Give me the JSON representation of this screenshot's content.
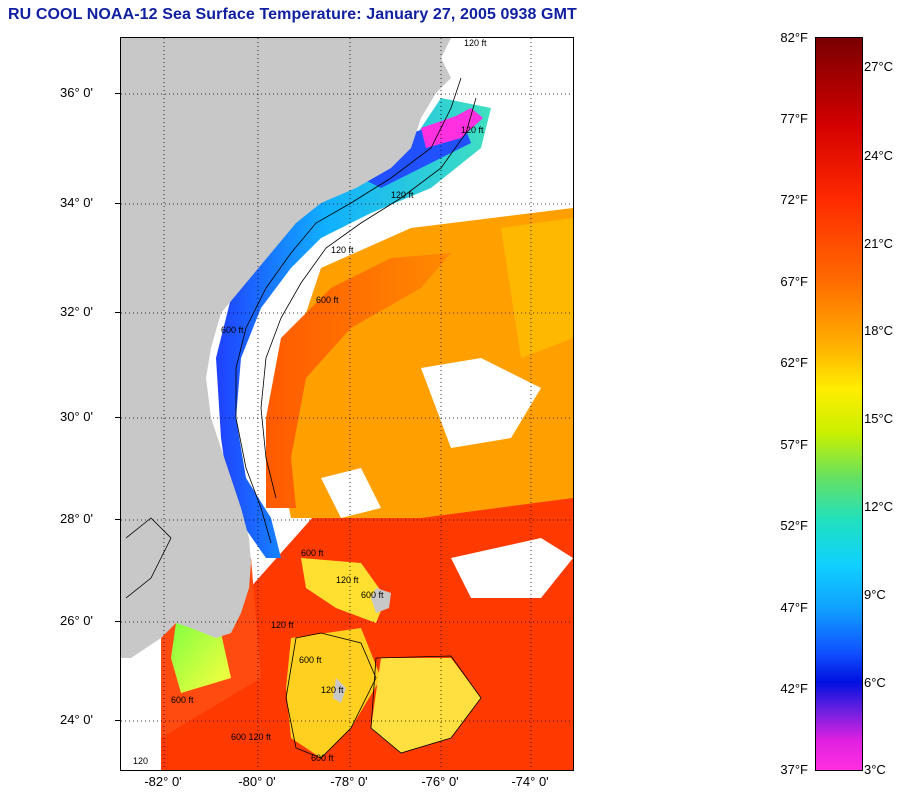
{
  "title": "RU COOL  NOAA-12  Sea Surface Temperature:  January 27, 2005 0938 GMT",
  "map": {
    "latitude_labels": [
      "36° 0'",
      "34° 0'",
      "32° 0'",
      "30° 0'",
      "28° 0'",
      "26° 0'",
      "24° 0'"
    ],
    "longitude_labels": [
      "-82° 0'",
      "-80° 0'",
      "-78° 0'",
      "-76° 0'",
      "-74° 0'"
    ],
    "contour_labels": [
      "120 ft",
      "120 ft",
      "120 ft",
      "120 ft",
      "600 ft",
      "600 ft",
      "600 ft",
      "120 ft",
      "600 ft",
      "120 ft",
      "600 ft",
      "120 ft",
      "600 ft",
      "600 120 ft",
      "600 ft",
      "120"
    ]
  },
  "colorbar": {
    "fahrenheit_labels": [
      "82°F",
      "77°F",
      "72°F",
      "67°F",
      "62°F",
      "57°F",
      "52°F",
      "47°F",
      "42°F",
      "37°F"
    ],
    "celsius_labels": [
      "27°C",
      "24°C",
      "21°C",
      "18°C",
      "15°C",
      "12°C",
      "9°C",
      "6°C",
      "3°C"
    ],
    "range_fahrenheit": [
      37,
      82
    ],
    "range_celsius": [
      3,
      27
    ]
  }
}
